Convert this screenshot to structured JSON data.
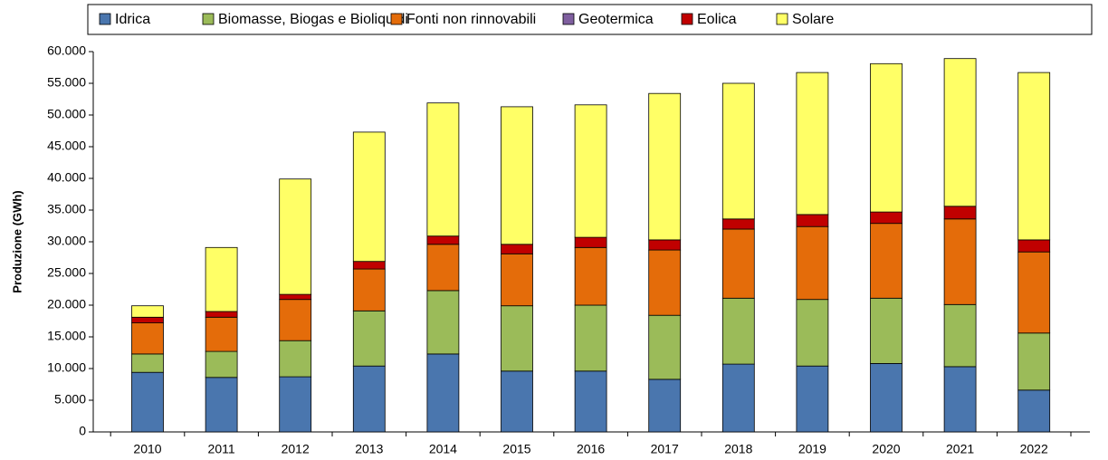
{
  "chart_data": {
    "type": "bar",
    "stacked": true,
    "ylabel": "Produzione (GWh)",
    "categories": [
      "2010",
      "2011",
      "2012",
      "2013",
      "2014",
      "2015",
      "2016",
      "2017",
      "2018",
      "2019",
      "2020",
      "2021",
      "2022"
    ],
    "series": [
      {
        "name": "Idrica",
        "color": "#4a76ae",
        "values": [
          9400,
          8600,
          8700,
          10400,
          12300,
          9600,
          9600,
          8300,
          10700,
          10400,
          10800,
          10300,
          6600
        ]
      },
      {
        "name": "Biomasse, Biogas e Bioliquidi",
        "color": "#9bbb59",
        "values": [
          2900,
          4100,
          5700,
          8700,
          10000,
          10300,
          10400,
          10100,
          10400,
          10500,
          10300,
          9800,
          9000
        ]
      },
      {
        "name": "Fonti non rinnovabili",
        "color": "#e46c0a",
        "values": [
          4900,
          5400,
          6500,
          6600,
          7300,
          8200,
          9100,
          10300,
          10900,
          11500,
          11800,
          13500,
          12800
        ]
      },
      {
        "name": "Geotermica",
        "color": "#7f5f9f",
        "values": [
          0,
          0,
          0,
          0,
          0,
          0,
          0,
          0,
          0,
          0,
          0,
          0,
          0
        ]
      },
      {
        "name": "Eolica",
        "color": "#c00000",
        "values": [
          900,
          900,
          800,
          1200,
          1300,
          1500,
          1600,
          1600,
          1600,
          1900,
          1800,
          2000,
          1900
        ]
      },
      {
        "name": "Solare",
        "color": "#ffff66",
        "values": [
          1800,
          10100,
          18200,
          20400,
          21000,
          21700,
          20900,
          23100,
          21400,
          22400,
          23400,
          23300,
          26400
        ]
      }
    ],
    "ylim": [
      0,
      60000
    ],
    "yticks": [
      0,
      {
        "value": 5000,
        "label": "5.000"
      },
      {
        "value": 10000,
        "label": "10.000"
      },
      {
        "value": 15000,
        "label": "15.000"
      },
      {
        "value": 20000,
        "label": "20.000"
      },
      {
        "value": 25000,
        "label": "25.000"
      },
      {
        "value": 30000,
        "label": "30.000"
      },
      {
        "value": 35000,
        "label": "35.000"
      },
      {
        "value": 40000,
        "label": "40.000"
      },
      {
        "value": 45000,
        "label": "45.000"
      },
      {
        "value": 50000,
        "label": "50.000"
      },
      {
        "value": 55000,
        "label": "55.000"
      },
      {
        "value": 60000,
        "label": "60.000"
      }
    ],
    "legend": "top"
  }
}
